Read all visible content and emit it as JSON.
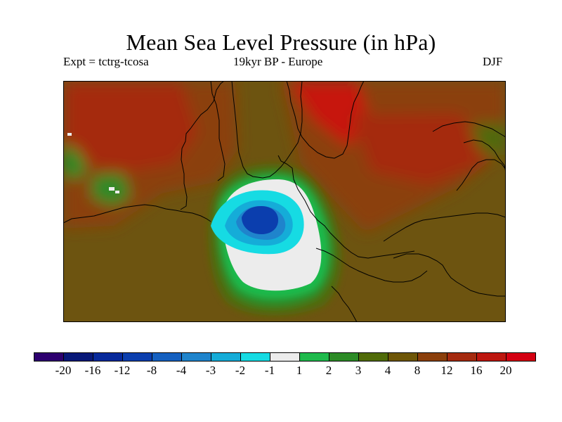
{
  "header": {
    "title": "Mean Sea Level Pressure (in hPa)",
    "experiment": "Expt = tctrg-tcosa",
    "period_region": "19kyr BP - Europe",
    "season": "DJF"
  },
  "colorbar": {
    "colors": [
      "#2d006f",
      "#081878",
      "#07299b",
      "#0b3eae",
      "#1560c0",
      "#1f84cc",
      "#15acd8",
      "#16dbe3",
      "#ececec",
      "#1fba4c",
      "#2c8b26",
      "#506b09",
      "#6e5607",
      "#8b3f0b",
      "#a52a0f",
      "#bd160f",
      "#d40012"
    ],
    "labels": [
      "-20",
      "-16",
      "-12",
      "-8",
      "-4",
      "-3",
      "-2",
      "-1",
      "1",
      "2",
      "3",
      "4",
      "8",
      "12",
      "16",
      "20"
    ]
  },
  "map": {
    "palette": {
      "base": "#6d5410",
      "red_mid": "#8b3f0b",
      "red_high": "#a52a0f",
      "red_max": "#c71510",
      "green_band": "#1fba4c",
      "dark_green": "#2c8b26",
      "olive": "#506b09",
      "white": "#ececec",
      "cyan": "#16dbe3",
      "light_blue": "#15acd8",
      "mid_blue": "#1f84cc",
      "deep_blue": "#0b3eae",
      "coast": "#000000"
    }
  }
}
